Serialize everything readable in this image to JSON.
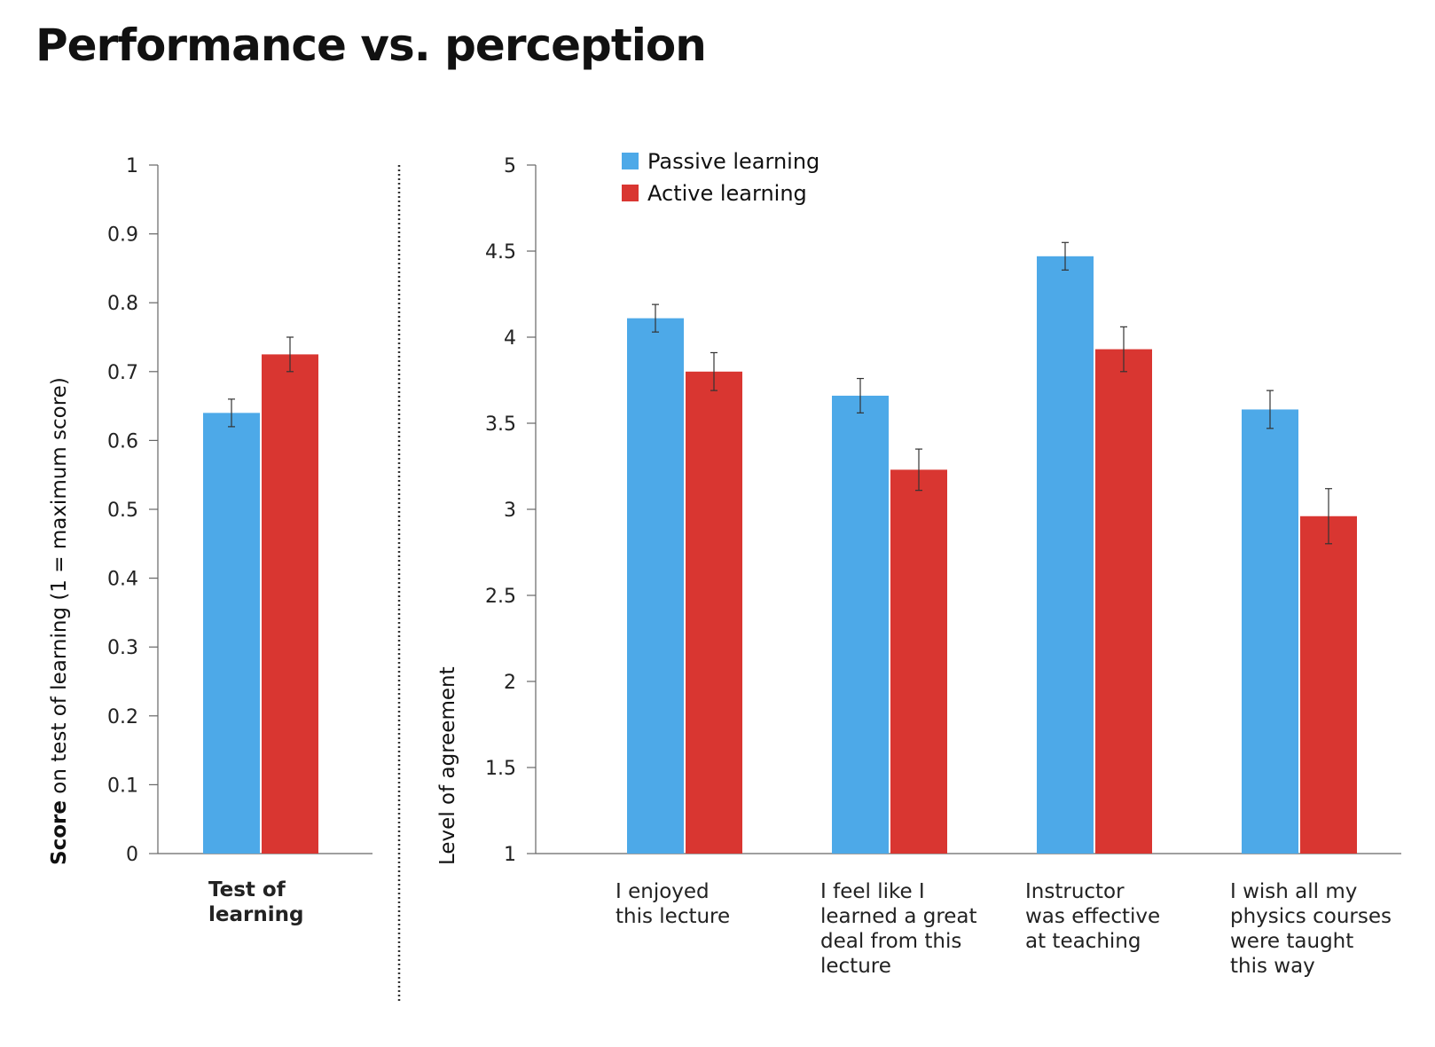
{
  "page": {
    "title": "Performance vs. perception"
  },
  "colors": {
    "passive": "#4da9e8",
    "active": "#d93631",
    "axis": "#666666",
    "error": "#333333"
  },
  "legend": [
    {
      "label": "Passive learning",
      "color": "#4da9e8"
    },
    {
      "label": "Active learning",
      "color": "#d93631"
    }
  ],
  "chart_data": [
    {
      "type": "bar",
      "title": "",
      "xlabel": "",
      "ylabel_bold": "Score",
      "ylabel_rest": " on test of learning (1 = maximum score)",
      "ylim": [
        0,
        1
      ],
      "yticks": [
        "0",
        "0.1",
        "0.2",
        "0.3",
        "0.4",
        "0.5",
        "0.6",
        "0.7",
        "0.8",
        "0.9",
        "1"
      ],
      "categories": [
        [
          "Test of",
          "learning"
        ]
      ],
      "series": [
        {
          "name": "Passive learning",
          "values": [
            0.64
          ],
          "errors": [
            0.02
          ]
        },
        {
          "name": "Active learning",
          "values": [
            0.725
          ],
          "errors": [
            0.025
          ]
        }
      ]
    },
    {
      "type": "bar",
      "title": "",
      "xlabel": "",
      "ylabel": "Level of agreement",
      "ylim": [
        1,
        5
      ],
      "yticks": [
        "1",
        "1.5",
        "2",
        "2.5",
        "3",
        "3.5",
        "4",
        "4.5",
        "5"
      ],
      "categories": [
        [
          "I enjoyed",
          "this lecture"
        ],
        [
          "I feel like I",
          "learned a great",
          "deal from this",
          "lecture"
        ],
        [
          "Instructor",
          "was effective",
          "at teaching"
        ],
        [
          "I wish all my",
          "physics courses",
          "were taught",
          "this way"
        ]
      ],
      "series": [
        {
          "name": "Passive learning",
          "values": [
            4.11,
            3.66,
            4.47,
            3.58
          ],
          "errors": [
            0.08,
            0.1,
            0.08,
            0.11
          ]
        },
        {
          "name": "Active learning",
          "values": [
            3.8,
            3.23,
            3.93,
            2.96
          ],
          "errors": [
            0.11,
            0.12,
            0.13,
            0.16
          ]
        }
      ]
    }
  ]
}
